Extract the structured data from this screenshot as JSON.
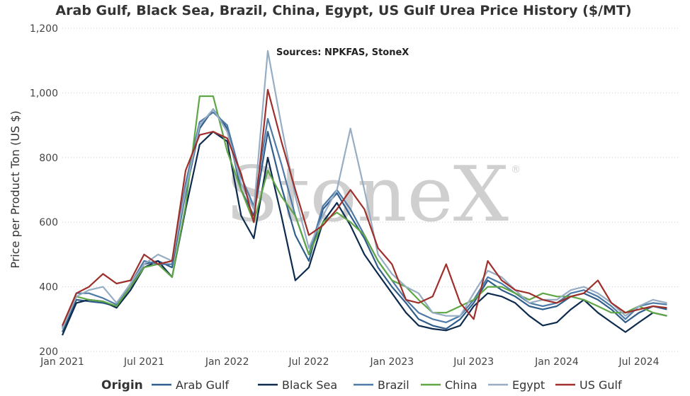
{
  "chart_data": {
    "type": "line",
    "title": "Arab Gulf, Black Sea, Brazil, China, Egypt, US Gulf Urea Price History ($/MT)",
    "ylabel": "Price per Product Ton (US $)",
    "xlabel": "",
    "annotation": "Sources: NPKFAS, StoneX",
    "watermark": "StoneX",
    "watermark_mark": "®",
    "legend_title": "Origin",
    "legend_position": "bottom",
    "grid": true,
    "y_ticks": [
      200,
      400,
      600,
      800,
      1000,
      1200
    ],
    "y_tick_labels": [
      "200",
      "400",
      "600",
      "800",
      "1,000",
      "1,200"
    ],
    "ylim": [
      200,
      1200
    ],
    "xlim": [
      "2021-01-01",
      "2024-09-30"
    ],
    "x_ticks": [
      "2021-01-01",
      "2021-07-01",
      "2022-01-01",
      "2022-07-01",
      "2023-01-01",
      "2023-07-01",
      "2024-01-01",
      "2024-07-01"
    ],
    "x_tick_labels": [
      "Jan 2021",
      "Jul 2021",
      "Jan 2022",
      "Jul 2022",
      "Jan 2023",
      "Jul 2023",
      "Jan 2024",
      "Jul 2024"
    ],
    "x": [
      "2021-01-01",
      "2021-02-01",
      "2021-03-01",
      "2021-04-01",
      "2021-05-01",
      "2021-06-01",
      "2021-07-01",
      "2021-08-01",
      "2021-09-01",
      "2021-10-01",
      "2021-11-01",
      "2021-12-01",
      "2022-01-01",
      "2022-02-01",
      "2022-03-01",
      "2022-04-01",
      "2022-05-01",
      "2022-06-01",
      "2022-07-01",
      "2022-08-01",
      "2022-09-01",
      "2022-10-01",
      "2022-11-01",
      "2022-12-01",
      "2023-01-01",
      "2023-02-01",
      "2023-03-01",
      "2023-04-01",
      "2023-05-01",
      "2023-06-01",
      "2023-07-01",
      "2023-08-01",
      "2023-09-01",
      "2023-10-01",
      "2023-11-01",
      "2023-12-01",
      "2024-01-01",
      "2024-02-01",
      "2024-03-01",
      "2024-04-01",
      "2024-05-01",
      "2024-06-01",
      "2024-07-01",
      "2024-08-01",
      "2024-09-01"
    ],
    "series": [
      {
        "name": "Arab Gulf",
        "color": "#2f5d8c",
        "values": [
          260,
          360,
          355,
          350,
          340,
          400,
          470,
          480,
          460,
          690,
          890,
          950,
          890,
          700,
          620,
          880,
          710,
          560,
          480,
          640,
          690,
          620,
          550,
          460,
          400,
          350,
          300,
          280,
          270,
          300,
          350,
          420,
          390,
          370,
          340,
          330,
          340,
          370,
          380,
          360,
          330,
          290,
          320,
          340,
          330
        ]
      },
      {
        "name": "Black Sea",
        "color": "#0d2b4e",
        "values": [
          250,
          350,
          360,
          355,
          335,
          390,
          460,
          480,
          430,
          640,
          840,
          880,
          850,
          620,
          550,
          800,
          620,
          420,
          460,
          600,
          660,
          590,
          500,
          440,
          380,
          320,
          280,
          270,
          265,
          280,
          340,
          380,
          370,
          350,
          310,
          280,
          290,
          330,
          360,
          320,
          290,
          260,
          290,
          320,
          310
        ]
      },
      {
        "name": "Brazil",
        "color": "#4d7aa6",
        "values": [
          275,
          380,
          380,
          365,
          345,
          410,
          480,
          470,
          470,
          720,
          910,
          940,
          900,
          740,
          650,
          920,
          780,
          620,
          500,
          650,
          700,
          640,
          560,
          480,
          420,
          360,
          320,
          300,
          290,
          310,
          360,
          430,
          410,
          380,
          350,
          340,
          350,
          380,
          390,
          370,
          340,
          300,
          340,
          350,
          345
        ]
      },
      {
        "name": "China",
        "color": "#5ea646",
        "values": [
          270,
          370,
          360,
          355,
          340,
          400,
          460,
          470,
          430,
          650,
          990,
          990,
          820,
          700,
          600,
          760,
          680,
          620,
          500,
          600,
          630,
          600,
          560,
          480,
          420,
          400,
          360,
          320,
          320,
          340,
          360,
          400,
          400,
          380,
          360,
          380,
          370,
          370,
          360,
          340,
          320,
          320,
          340,
          320,
          310
        ]
      },
      {
        "name": "Egypt",
        "color": "#96adc3",
        "values": [
          270,
          370,
          390,
          400,
          350,
          410,
          470,
          500,
          480,
          700,
          900,
          950,
          880,
          720,
          640,
          1130,
          900,
          680,
          520,
          620,
          700,
          890,
          700,
          500,
          440,
          400,
          380,
          320,
          310,
          310,
          380,
          450,
          430,
          390,
          350,
          360,
          360,
          390,
          400,
          380,
          350,
          310,
          340,
          360,
          350
        ]
      },
      {
        "name": "US Gulf",
        "color": "#9e2f2a",
        "values": [
          280,
          380,
          400,
          440,
          410,
          420,
          500,
          470,
          480,
          760,
          870,
          880,
          860,
          750,
          600,
          1010,
          850,
          700,
          560,
          590,
          640,
          700,
          640,
          520,
          470,
          360,
          350,
          370,
          470,
          350,
          300,
          480,
          420,
          390,
          380,
          360,
          350,
          370,
          380,
          420,
          350,
          320,
          330,
          340,
          335
        ]
      }
    ]
  }
}
